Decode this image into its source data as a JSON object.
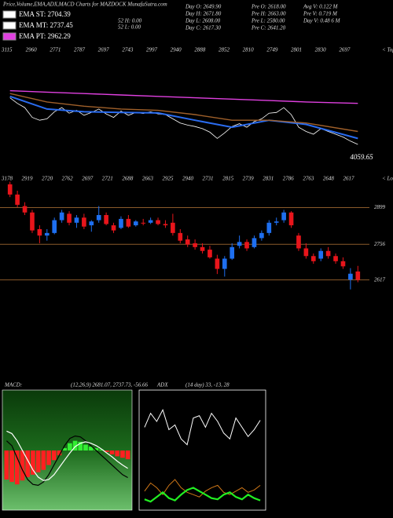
{
  "header": {
    "title": "Price,Volume,EMA,ADX,MACD Charts for MAZDOCK MunafaSutra.com",
    "legend": [
      "EMA ST: 2704.39",
      "EMA MT: 2737.45",
      "EMA PT: 2962.29"
    ],
    "stats": [
      [
        "Day O: 2649.90",
        "Day H: 2671.80",
        "Day L: 2608.00",
        "Day C: 2617.30"
      ],
      [
        "52 H: 0.00",
        "52 L: 0.00"
      ],
      [
        "Pre O: 2618.00",
        "Pre H: 2663.00",
        "Pre L: 2580.00",
        "Pre C: 2641.20"
      ],
      [
        "Avg V: 0.122 M",
        "Pre V: 0.719 M",
        "Day V: 0.48 6 M"
      ]
    ]
  },
  "chart_data": [
    {
      "type": "candlestick",
      "open": [
        2990,
        2950,
        2905,
        2880,
        2815,
        2790,
        2800,
        2850,
        2875,
        2840,
        2860,
        2830,
        2850,
        2870,
        2830,
        2820,
        2855,
        2830,
        2840,
        2840,
        2850,
        2835,
        2840,
        2800,
        2775,
        2760,
        2745,
        2735,
        2700,
        2660,
        2700,
        2750,
        2765,
        2745,
        2780,
        2800,
        2840,
        2850,
        2880,
        2790,
        2740,
        2710,
        2700,
        2730,
        2710,
        2690,
        2618,
        2649.9
      ],
      "high": [
        3000,
        2965,
        2920,
        2890,
        2830,
        2815,
        2860,
        2890,
        2885,
        2870,
        2875,
        2850,
        2905,
        2880,
        2840,
        2865,
        2870,
        2850,
        2855,
        2860,
        2860,
        2850,
        2875,
        2815,
        2790,
        2775,
        2760,
        2750,
        2715,
        2710,
        2760,
        2790,
        2775,
        2790,
        2810,
        2850,
        2860,
        2890,
        2885,
        2800,
        2760,
        2720,
        2740,
        2745,
        2720,
        2705,
        2663,
        2671.8
      ],
      "low": [
        2940,
        2900,
        2870,
        2800,
        2760,
        2770,
        2795,
        2840,
        2830,
        2820,
        2815,
        2805,
        2840,
        2830,
        2800,
        2815,
        2820,
        2825,
        2830,
        2835,
        2830,
        2820,
        2790,
        2760,
        2745,
        2735,
        2720,
        2700,
        2640,
        2630,
        2695,
        2740,
        2730,
        2740,
        2770,
        2790,
        2830,
        2840,
        2820,
        2730,
        2700,
        2680,
        2690,
        2700,
        2680,
        2660,
        2580,
        2608
      ],
      "close": [
        2950,
        2910,
        2880,
        2810,
        2790,
        2800,
        2850,
        2880,
        2840,
        2860,
        2825,
        2845,
        2870,
        2835,
        2810,
        2855,
        2825,
        2845,
        2838,
        2850,
        2835,
        2830,
        2800,
        2770,
        2755,
        2745,
        2730,
        2705,
        2660,
        2700,
        2745,
        2765,
        2740,
        2780,
        2800,
        2840,
        2845,
        2880,
        2830,
        2740,
        2710,
        2690,
        2730,
        2710,
        2690,
        2670,
        2641.2,
        2617.3
      ],
      "ylim": [
        2570,
        3020
      ],
      "up_color": "#1e6ff0",
      "down_color": "#e8151b",
      "level_lines": [
        2899,
        2756,
        2617
      ],
      "level_color": "#8a5a2a",
      "annotations": [
        3178,
        2919,
        2720,
        2762,
        2697,
        2721,
        2688,
        2663,
        2925,
        2940,
        2731,
        2815,
        2739,
        2831,
        2786,
        2763,
        2648,
        2617
      ],
      "side_label": "< Lows"
    },
    {
      "type": "line",
      "ylim": [
        2500,
        3300
      ],
      "price_color": "#ffffff",
      "series": [
        {
          "color": "#2a6cf0",
          "x": [
            0,
            5,
            10,
            15,
            20,
            25,
            30,
            35,
            40,
            47
          ],
          "values": [
            2960,
            2870,
            2850,
            2845,
            2842,
            2790,
            2740,
            2790,
            2760,
            2660
          ]
        },
        {
          "color": "#a0602a",
          "x": [
            0,
            5,
            10,
            15,
            20,
            25,
            30,
            35,
            40,
            47
          ],
          "values": [
            2980,
            2920,
            2890,
            2870,
            2860,
            2830,
            2790,
            2790,
            2770,
            2710
          ]
        },
        {
          "color": "#e040e0",
          "x": [
            0,
            5,
            10,
            15,
            20,
            25,
            30,
            35,
            40,
            47
          ],
          "values": [
            3000,
            2990,
            2980,
            2970,
            2960,
            2950,
            2940,
            2930,
            2920,
            2910
          ]
        }
      ],
      "annotations": [
        3115,
        2960,
        2771,
        2787,
        2697,
        2743,
        2997,
        2940,
        2888,
        2852,
        2810,
        2749,
        2801,
        2830,
        2697
      ],
      "bottom_label": "4059.65",
      "side_label": "< Tops"
    },
    {
      "type": "macd",
      "title": "MACD:",
      "subtitle": "(12,26,9) 2681.07, 2737.73, -56.66",
      "ylim": [
        -120,
        120
      ],
      "histogram": [
        -60,
        -65,
        -70,
        -62,
        -55,
        -50,
        -45,
        -40,
        -30,
        -20,
        -10,
        5,
        15,
        20,
        18,
        12,
        8,
        5,
        2,
        -3,
        -8,
        -12,
        -15,
        -18
      ],
      "pos_color": "#33ee33",
      "neg_color": "#ff2020",
      "series": [
        {
          "color": "#000000",
          "values": [
            20,
            10,
            -15,
            -40,
            -60,
            -70,
            -72,
            -65,
            -50,
            -30,
            -10,
            10,
            25,
            30,
            28,
            20,
            10,
            0,
            -10,
            -20,
            -30,
            -40,
            -50,
            -56
          ]
        },
        {
          "color": "#ffffff",
          "values": [
            40,
            35,
            20,
            0,
            -20,
            -40,
            -55,
            -62,
            -60,
            -50,
            -35,
            -20,
            -5,
            8,
            15,
            18,
            15,
            10,
            3,
            -5,
            -13,
            -22,
            -30,
            -37
          ]
        }
      ]
    },
    {
      "type": "line",
      "title": "ADX",
      "subtitle": "(14 day) 33, -13, 28",
      "ylim": [
        0,
        100
      ],
      "series": [
        {
          "color": "#ffffff",
          "values": [
            70,
            82,
            75,
            85,
            68,
            72,
            60,
            55,
            78,
            80,
            70,
            82,
            75,
            65,
            60,
            78,
            70,
            62,
            68,
            76
          ]
        },
        {
          "color": "#d07818",
          "values": [
            15,
            22,
            18,
            12,
            20,
            25,
            18,
            14,
            12,
            10,
            15,
            18,
            20,
            14,
            12,
            15,
            18,
            14,
            16,
            20
          ]
        },
        {
          "color": "#22ee22",
          "values": [
            8,
            6,
            10,
            14,
            9,
            7,
            12,
            16,
            18,
            15,
            12,
            9,
            8,
            12,
            14,
            10,
            8,
            12,
            9,
            7
          ]
        }
      ]
    }
  ]
}
